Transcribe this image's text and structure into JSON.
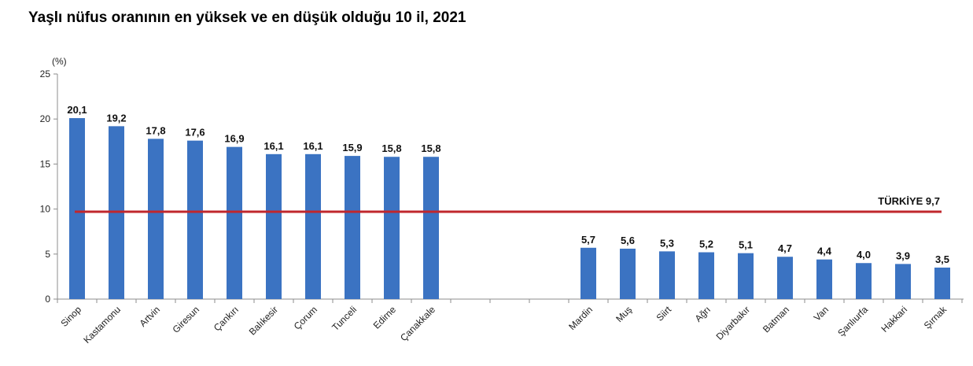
{
  "chart_data": {
    "type": "bar",
    "title": "Yaşlı nüfus oranının en yüksek ve en düşük olduğu 10 il, 2021",
    "ylabel": "(%)",
    "xlabel": "",
    "ylim": [
      0,
      25
    ],
    "yticks": [
      "0",
      "5",
      "10",
      "15",
      "20",
      "25"
    ],
    "grid": false,
    "legend": "none",
    "bar_color": "#3b73c2",
    "reference_line": {
      "value": 9.7,
      "label": "TÜRKİYE 9,7",
      "color": "#c0272d"
    },
    "groups": [
      {
        "name": "highest",
        "categories": [
          "Sinop",
          "Kastamonu",
          "Artvin",
          "Giresun",
          "Çankırı",
          "Balıkesir",
          "Çorum",
          "Tunceli",
          "Edirne",
          "Çanakkale"
        ],
        "values": [
          20.1,
          19.2,
          17.8,
          17.6,
          16.9,
          16.1,
          16.1,
          15.9,
          15.8,
          15.8
        ],
        "value_labels": [
          "20,1",
          "19,2",
          "17,8",
          "17,6",
          "16,9",
          "16,1",
          "16,1",
          "15,9",
          "15,8",
          "15,8"
        ]
      },
      {
        "name": "lowest",
        "categories": [
          "Mardin",
          "Muş",
          "Siirt",
          "Ağrı",
          "Diyarbakır",
          "Batman",
          "Van",
          "Şanlıurfa",
          "Hakkari",
          "Şırnak"
        ],
        "values": [
          5.7,
          5.6,
          5.3,
          5.2,
          5.1,
          4.7,
          4.4,
          4.0,
          3.9,
          3.5
        ],
        "value_labels": [
          "5,7",
          "5,6",
          "5,3",
          "5,2",
          "5,1",
          "4,7",
          "4,4",
          "4,0",
          "3,9",
          "3,5"
        ]
      }
    ]
  }
}
